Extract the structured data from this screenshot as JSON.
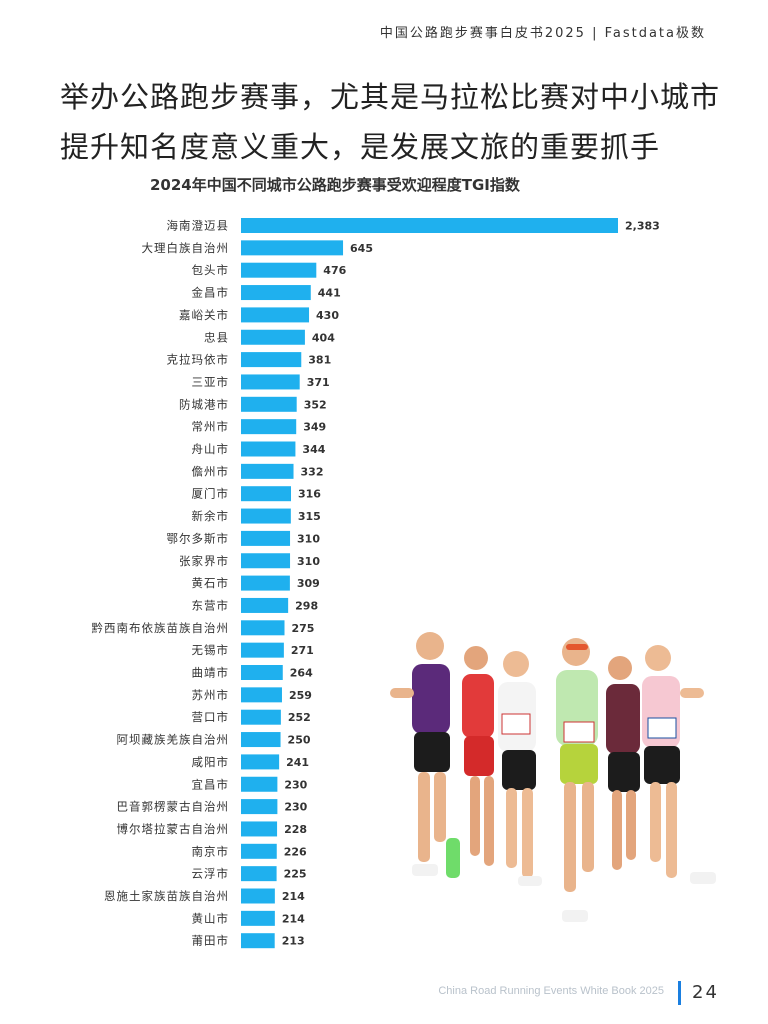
{
  "header": {
    "publication": "中国公路跑步赛事白皮书2025 | Fastdata极数"
  },
  "headline": {
    "line1": "举办公路跑步赛事，尤其是马拉松比赛对中小城市",
    "line2": "提升知名度意义重大，是发展文旅的重要抓手"
  },
  "chart_data": {
    "type": "bar",
    "orientation": "horizontal",
    "title": "2024年中国不同城市公路跑步赛事受欢迎程度TGI指数",
    "bar_color": "#1fb0ee",
    "grid": false,
    "legend": "none",
    "xlim": [
      0,
      2383
    ],
    "categories": [
      "海南澄迈县",
      "大理白族自治州",
      "包头市",
      "金昌市",
      "嘉峪关市",
      "忠县",
      "克拉玛依市",
      "三亚市",
      "防城港市",
      "常州市",
      "舟山市",
      "儋州市",
      "厦门市",
      "新余市",
      "鄂尔多斯市",
      "张家界市",
      "黄石市",
      "东营市",
      "黔西南布依族苗族自治州",
      "无锡市",
      "曲靖市",
      "苏州市",
      "营口市",
      "阿坝藏族羌族自治州",
      "咸阳市",
      "宜昌市",
      "巴音郭楞蒙古自治州",
      "博尔塔拉蒙古自治州",
      "南京市",
      "云浮市",
      "恩施土家族苗族自治州",
      "黄山市",
      "莆田市"
    ],
    "values": [
      2383,
      645,
      476,
      441,
      430,
      404,
      381,
      371,
      352,
      349,
      344,
      332,
      316,
      315,
      310,
      310,
      309,
      298,
      275,
      271,
      264,
      259,
      252,
      250,
      241,
      230,
      230,
      228,
      226,
      225,
      214,
      214,
      213
    ],
    "value_labels": [
      "2,383",
      "645",
      "476",
      "441",
      "430",
      "404",
      "381",
      "371",
      "352",
      "349",
      "344",
      "332",
      "316",
      "315",
      "310",
      "310",
      "309",
      "298",
      "275",
      "271",
      "264",
      "259",
      "252",
      "250",
      "241",
      "230",
      "230",
      "228",
      "226",
      "225",
      "214",
      "214",
      "213"
    ]
  },
  "footer": {
    "english_title": "China Road Running Events White Book 2025",
    "page_number": "24",
    "accent_color": "#1a7fe0"
  }
}
